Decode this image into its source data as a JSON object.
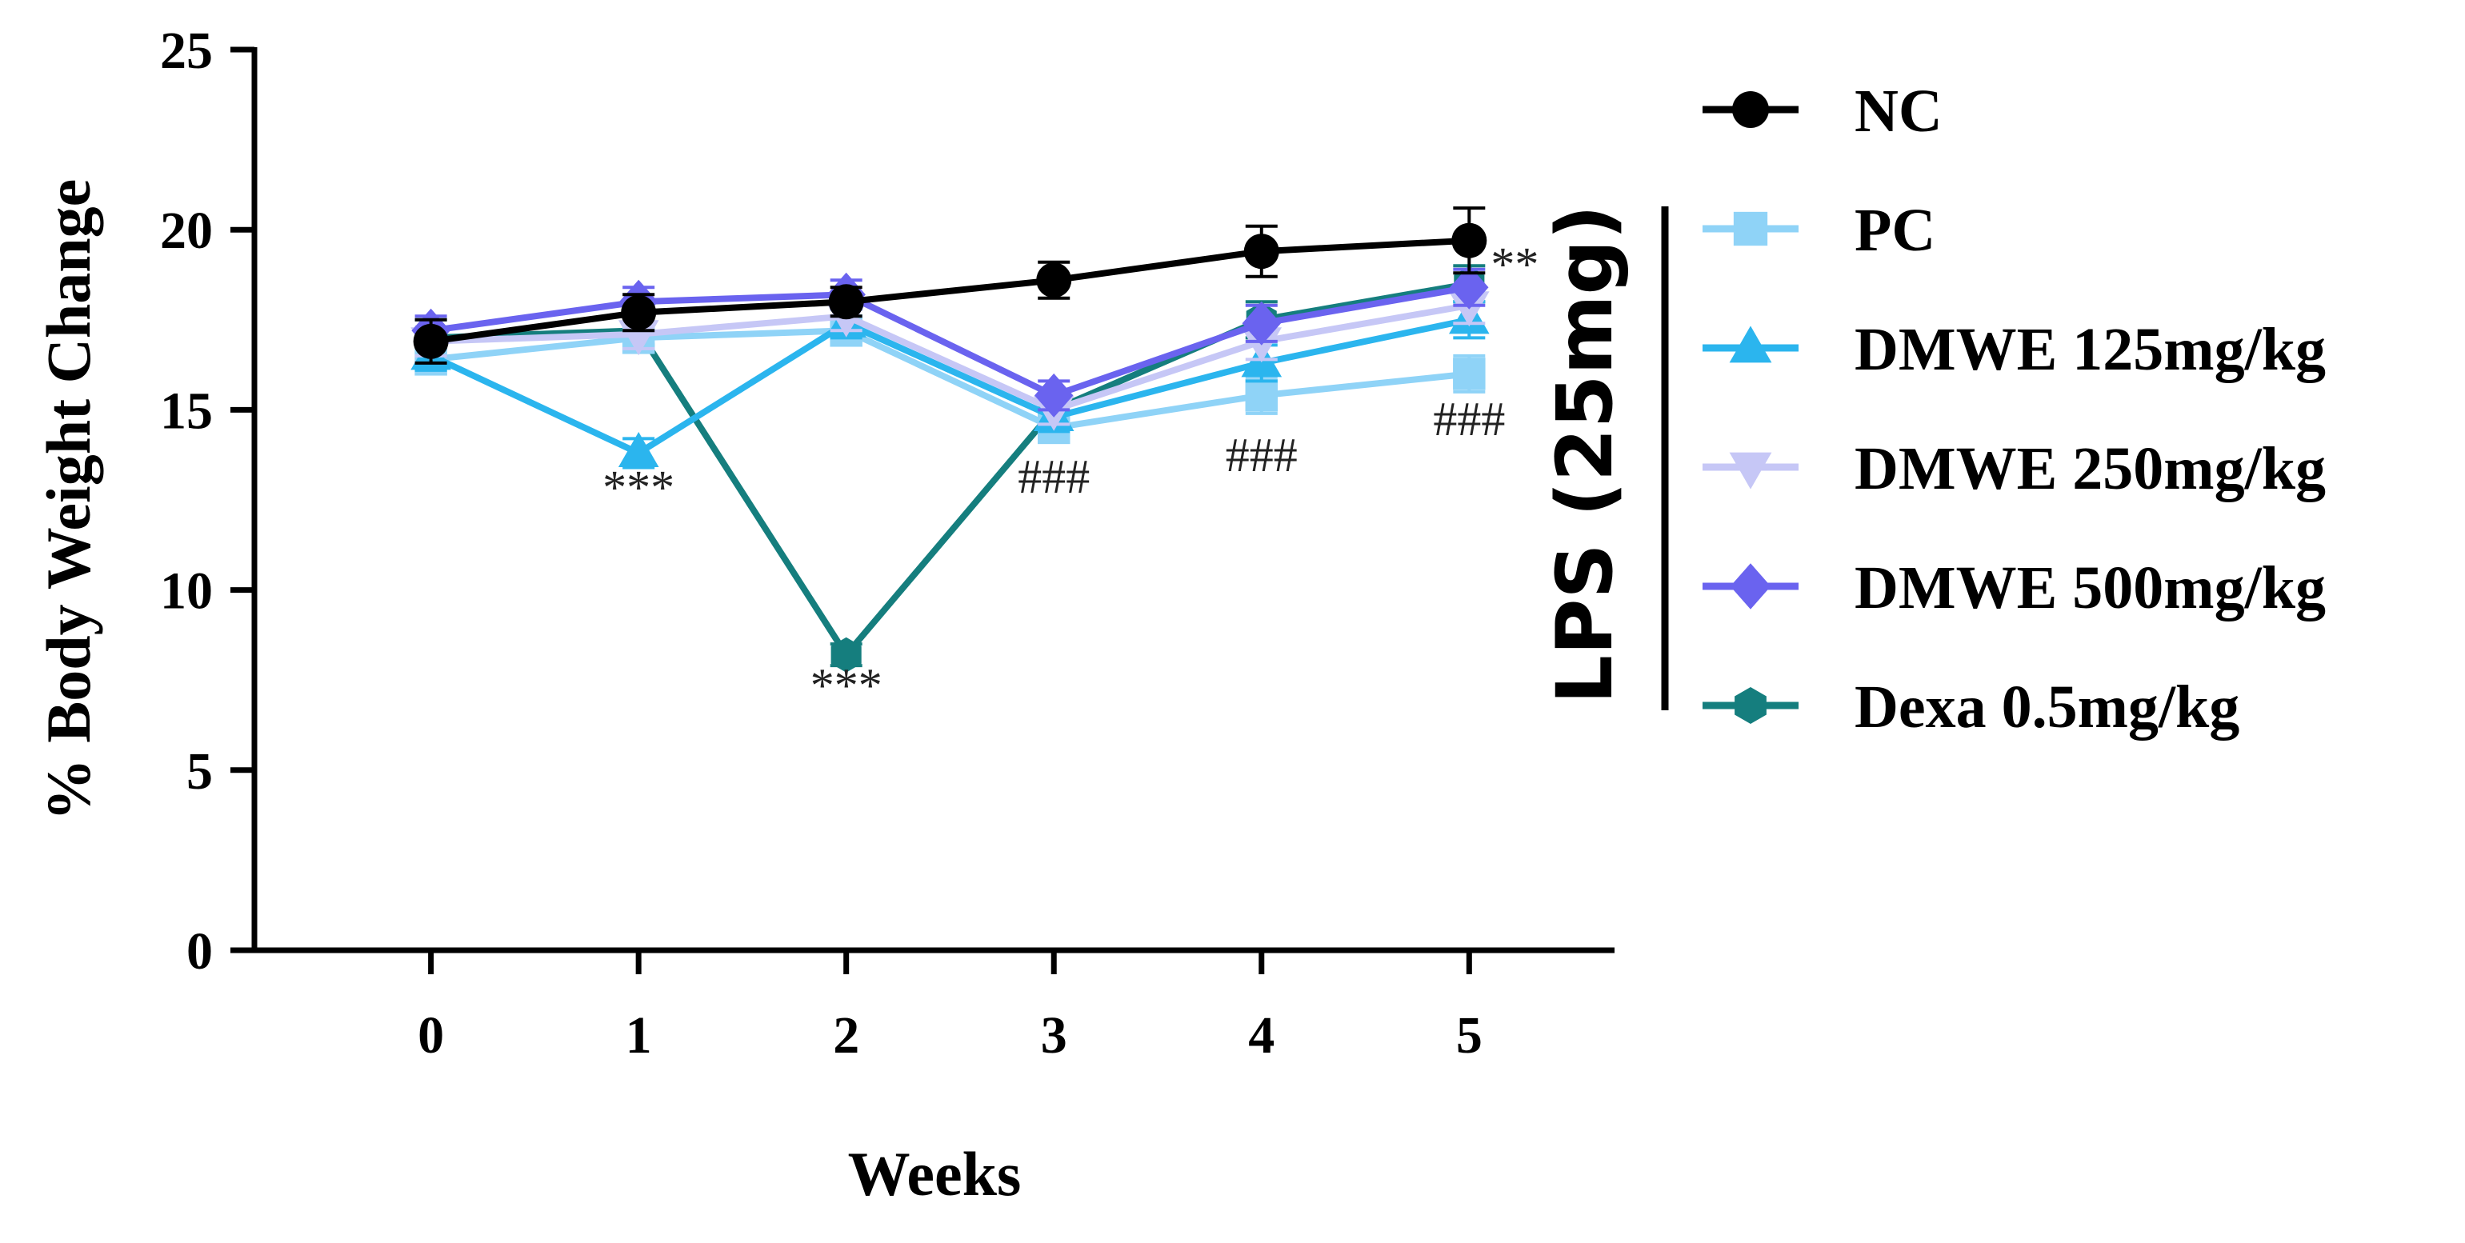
{
  "chart_data": {
    "type": "line",
    "title": "",
    "xlabel": "Weeks",
    "ylabel": "% Body Weight Change",
    "x": [
      0,
      1,
      2,
      3,
      4,
      5
    ],
    "x_tick_labels": [
      "0",
      "1",
      "2",
      "3",
      "4",
      "5"
    ],
    "y_ticks": [
      0,
      5,
      10,
      15,
      20,
      25
    ],
    "y_tick_labels": [
      "0",
      "5",
      "10",
      "15",
      "20",
      "25"
    ],
    "xlim": [
      -0.85,
      5.7
    ],
    "ylim": [
      0,
      25
    ],
    "grid": false,
    "legend_position": "right",
    "series": [
      {
        "name": "NC",
        "color": "#000000",
        "marker": "circle",
        "values": [
          16.9,
          17.7,
          18.0,
          18.6,
          19.4,
          19.7
        ],
        "errors": [
          0.6,
          0.5,
          0.4,
          0.5,
          0.7,
          0.9
        ]
      },
      {
        "name": "PC",
        "color": "#8fd3f7",
        "marker": "square",
        "values": [
          16.4,
          17.0,
          17.2,
          14.5,
          15.4,
          16.0
        ],
        "errors": [
          0.4,
          0.4,
          0.3,
          0.4,
          0.5,
          0.5
        ]
      },
      {
        "name": "DMWE 125mg/kg",
        "color": "#2bb5ee",
        "marker": "triangle-up",
        "values": [
          16.5,
          13.8,
          17.4,
          14.8,
          16.3,
          17.5
        ],
        "errors": [
          0.4,
          0.4,
          0.4,
          0.4,
          0.5,
          0.5
        ]
      },
      {
        "name": "DMWE 250mg/kg",
        "color": "#c6c7f6",
        "marker": "triangle-down",
        "values": [
          16.9,
          17.1,
          17.6,
          15.0,
          16.9,
          17.9
        ],
        "errors": [
          0.4,
          0.4,
          0.4,
          0.4,
          0.5,
          0.5
        ]
      },
      {
        "name": "DMWE 500mg/kg",
        "color": "#6a63ef",
        "marker": "diamond",
        "values": [
          17.2,
          18.0,
          18.2,
          15.4,
          17.4,
          18.4
        ],
        "errors": [
          0.4,
          0.4,
          0.4,
          0.4,
          0.5,
          0.5
        ]
      },
      {
        "name": "Dexa 0.5mg/kg",
        "color": "#157e7e",
        "marker": "hexagon",
        "values": [
          17.0,
          17.2,
          8.2,
          15.0,
          17.5,
          18.5
        ],
        "errors": [
          0.5,
          0.4,
          0.3,
          0.4,
          0.5,
          0.5
        ]
      }
    ],
    "annotations": [
      {
        "text": "***",
        "x": 1,
        "y": 12.4
      },
      {
        "text": "***",
        "x": 2,
        "y": 6.9
      },
      {
        "text": "###",
        "x": 3,
        "y": 12.7
      },
      {
        "text": "###",
        "x": 4,
        "y": 13.3
      },
      {
        "text": "###",
        "x": 5,
        "y": 14.3
      },
      {
        "text": "**",
        "x": 5.22,
        "y": 18.6
      }
    ],
    "group_label": "LPS (25mg)"
  }
}
